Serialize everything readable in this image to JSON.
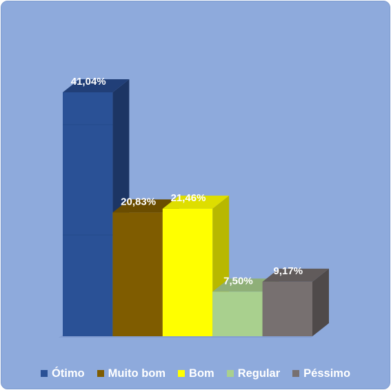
{
  "chart_data": {
    "type": "bar",
    "style": "3d",
    "categories": [
      "Ótimo",
      "Muito bom",
      "Bom",
      "Regular",
      "Péssimo"
    ],
    "values": [
      41.04,
      20.83,
      21.46,
      7.5,
      9.17
    ],
    "data_labels": [
      "41,04%",
      "20,83%",
      "21,46%",
      "7,50%",
      "9,17%"
    ],
    "colors": [
      "#2a5196",
      "#7f5c00",
      "#ffff00",
      "#a9d08e",
      "#777070"
    ],
    "side_colors": [
      "#1c3564",
      "#5a4000",
      "#b8b800",
      "#7e9b69",
      "#4f4a4a"
    ],
    "top_colors": [
      "#213f78",
      "#6b4d00",
      "#dede00",
      "#8faf78",
      "#615b5b"
    ],
    "ylim": [
      0,
      41.04
    ],
    "grid": false,
    "legend_position": "bottom",
    "background": "#8eaadc"
  }
}
